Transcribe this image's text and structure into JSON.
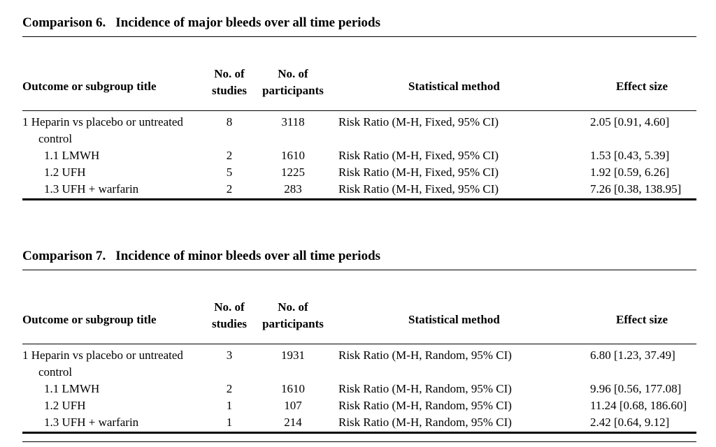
{
  "comparisons": [
    {
      "label": "Comparison 6.",
      "title": "Incidence of major bleeds over all time periods",
      "headers": {
        "outcome": "Outcome or subgroup title",
        "studies_1": "No. of",
        "studies_2": "studies",
        "participants_1": "No. of",
        "participants_2": "participants",
        "method": "Statistical method",
        "effect": "Effect size"
      },
      "rows": [
        {
          "title": "1 Heparin vs placebo or untreated",
          "title_cont": "control",
          "studies": "8",
          "participants": "3118",
          "method": "Risk Ratio (M-H, Fixed, 95% CI)",
          "effect": "2.05 [0.91, 4.60]"
        },
        {
          "title": "1.1 LMWH",
          "studies": "2",
          "participants": "1610",
          "method": "Risk Ratio (M-H, Fixed, 95% CI)",
          "effect": "1.53 [0.43, 5.39]"
        },
        {
          "title": "1.2 UFH",
          "studies": "5",
          "participants": "1225",
          "method": "Risk Ratio (M-H, Fixed, 95% CI)",
          "effect": "1.92 [0.59, 6.26]"
        },
        {
          "title": "1.3 UFH + warfarin",
          "studies": "2",
          "participants": "283",
          "method": "Risk Ratio (M-H, Fixed, 95% CI)",
          "effect": "7.26 [0.38, 138.95]"
        }
      ]
    },
    {
      "label": "Comparison 7.",
      "title": "Incidence of minor bleeds over all time periods",
      "headers": {
        "outcome": "Outcome or subgroup title",
        "studies_1": "No. of",
        "studies_2": "studies",
        "participants_1": "No. of",
        "participants_2": "participants",
        "method": "Statistical method",
        "effect": "Effect size"
      },
      "rows": [
        {
          "title": "1 Heparin vs placebo or untreated",
          "title_cont": "control",
          "studies": "3",
          "participants": "1931",
          "method": "Risk Ratio (M-H, Random, 95% CI)",
          "effect": "6.80 [1.23, 37.49]"
        },
        {
          "title": "1.1 LMWH",
          "studies": "2",
          "participants": "1610",
          "method": "Risk Ratio (M-H, Random, 95% CI)",
          "effect": "9.96 [0.56, 177.08]"
        },
        {
          "title": "1.2 UFH",
          "studies": "1",
          "participants": "107",
          "method": "Risk Ratio (M-H, Random, 95% CI)",
          "effect": "11.24 [0.68, 186.60]"
        },
        {
          "title": "1.3 UFH + warfarin",
          "studies": "1",
          "participants": "214",
          "method": "Risk Ratio (M-H, Random, 95% CI)",
          "effect": "2.42 [0.64, 9.12]"
        }
      ]
    }
  ]
}
